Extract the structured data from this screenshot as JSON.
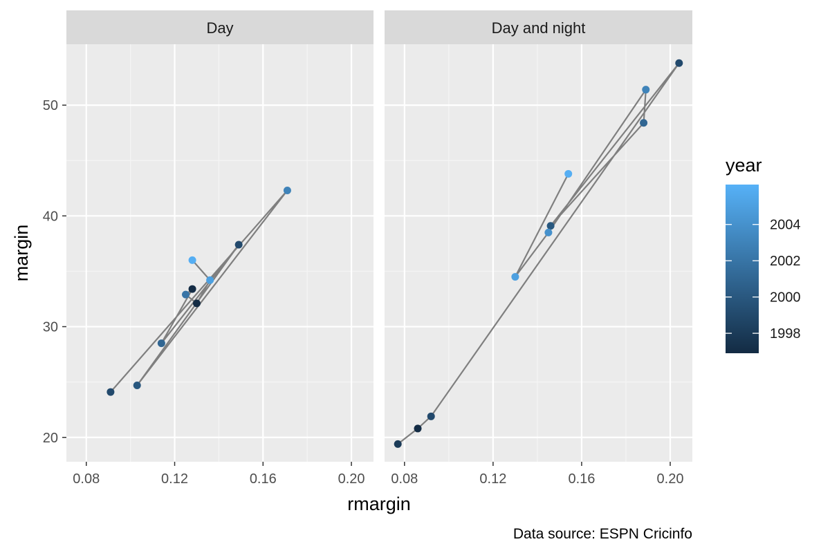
{
  "chart_data": {
    "type": "scatter",
    "facets": [
      {
        "label": "Day",
        "points": [
          {
            "x": 0.091,
            "y": 24.1,
            "year": 1999
          },
          {
            "x": 0.171,
            "y": 42.3,
            "year": 2003
          },
          {
            "x": 0.103,
            "y": 24.7,
            "year": 2000
          },
          {
            "x": 0.149,
            "y": 37.4,
            "year": 1999
          },
          {
            "x": 0.114,
            "y": 28.5,
            "year": 2001
          },
          {
            "x": 0.128,
            "y": 33.4,
            "year": 1997
          },
          {
            "x": 0.125,
            "y": 32.9,
            "year": 2002
          },
          {
            "x": 0.13,
            "y": 32.1,
            "year": 1997
          },
          {
            "x": 0.136,
            "y": 34.2,
            "year": 2005
          },
          {
            "x": 0.128,
            "y": 36.0,
            "year": 2006
          }
        ]
      },
      {
        "label": "Day and night",
        "points": [
          {
            "x": 0.077,
            "y": 19.4,
            "year": 1998
          },
          {
            "x": 0.086,
            "y": 20.8,
            "year": 1997
          },
          {
            "x": 0.092,
            "y": 21.9,
            "year": 1999
          },
          {
            "x": 0.204,
            "y": 53.8,
            "year": 1999
          },
          {
            "x": 0.146,
            "y": 39.1,
            "year": 2000
          },
          {
            "x": 0.188,
            "y": 48.4,
            "year": 2001
          },
          {
            "x": 0.189,
            "y": 51.4,
            "year": 2003
          },
          {
            "x": 0.145,
            "y": 38.5,
            "year": 2004
          },
          {
            "x": 0.13,
            "y": 34.5,
            "year": 2005
          },
          {
            "x": 0.154,
            "y": 43.8,
            "year": 2006
          }
        ]
      }
    ],
    "xlabel": "rmargin",
    "ylabel": "margin",
    "xlim": [
      0.071,
      0.21
    ],
    "ylim": [
      17.8,
      55.5
    ],
    "x_ticks": [
      0.08,
      0.12,
      0.16,
      0.2
    ],
    "x_tick_labels": [
      "0.08",
      "0.12",
      "0.16",
      "0.20"
    ],
    "y_ticks": [
      20,
      30,
      40,
      50
    ],
    "y_tick_labels": [
      "20",
      "30",
      "40",
      "50"
    ],
    "grid": true,
    "line_color": "#7f7f7f",
    "panel_background": "#ebebeb",
    "strip_background": "#d9d9d9",
    "legend": {
      "title": "year",
      "position": "right",
      "range": [
        1996.9,
        2006.2
      ],
      "low_color": "#132b43",
      "high_color": "#56b1f7",
      "ticks": [
        1998,
        2000,
        2002,
        2004
      ],
      "tick_labels": [
        "1998",
        "2000",
        "2002",
        "2004"
      ]
    },
    "caption": "Data source: ESPN Cricinfo"
  }
}
